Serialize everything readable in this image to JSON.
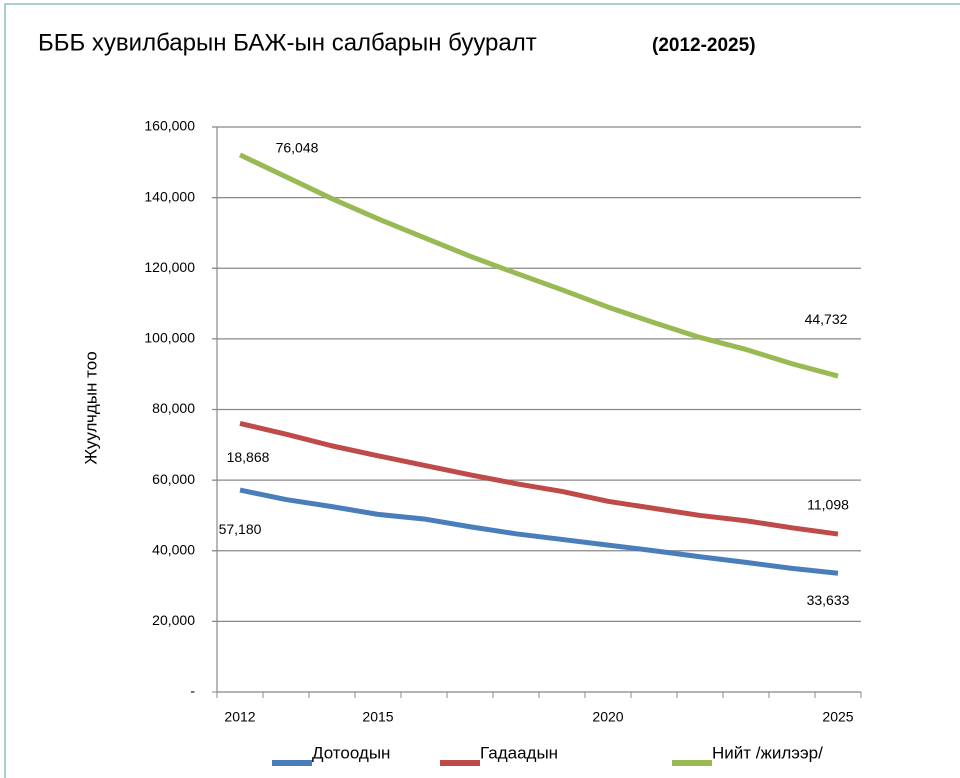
{
  "chart_data": {
    "type": "line",
    "stacked": true,
    "title": "БББ хувилбарын БАЖ-ын салбарын бууралт",
    "subtitle": "(2012-2025)",
    "y_label": "Жуулчдын тоо",
    "categories": [
      "2012",
      null,
      null,
      "2015",
      null,
      null,
      null,
      null,
      "2020",
      null,
      null,
      null,
      null,
      "2025"
    ],
    "series": [
      {
        "name": "Дотоодын",
        "color": "#4a7ebb",
        "values": [
          57180,
          54500,
          52500,
          50300,
          49000,
          46800,
          44800,
          43200,
          41600,
          40000,
          38300,
          36700,
          35000,
          33633
        ],
        "value_labels": [
          "57,180",
          null,
          null,
          null,
          null,
          null,
          null,
          null,
          null,
          null,
          null,
          null,
          null,
          "33,633"
        ]
      },
      {
        "name": "Гадаадын",
        "color": "#be4b48",
        "values": [
          18868,
          18500,
          17200,
          16600,
          15200,
          14700,
          14200,
          13600,
          12400,
          12000,
          11700,
          11800,
          11500,
          11098
        ],
        "value_labels": [
          "18,868",
          null,
          null,
          null,
          null,
          null,
          null,
          null,
          null,
          null,
          null,
          null,
          null,
          "11,098"
        ]
      },
      {
        "name": "Нийт /жилээр/",
        "color": "#98b954",
        "values": [
          76048,
          72900,
          70000,
          67100,
          64500,
          61900,
          59600,
          57100,
          55000,
          52600,
          50400,
          48500,
          46450,
          44732
        ],
        "value_labels": [
          "76,048",
          null,
          null,
          null,
          null,
          null,
          null,
          null,
          null,
          null,
          null,
          null,
          null,
          "44,732"
        ]
      }
    ],
    "ylim": [
      0,
      160000
    ],
    "yticks": [
      {
        "value": 0,
        "label": "-"
      },
      {
        "value": 20000,
        "label": "20,000"
      },
      {
        "value": 40000,
        "label": "40,000"
      },
      {
        "value": 60000,
        "label": "60,000"
      },
      {
        "value": 80000,
        "label": "80,000"
      },
      {
        "value": 100000,
        "label": "100,000"
      },
      {
        "value": 120000,
        "label": "120,000"
      },
      {
        "value": 140000,
        "label": "140,000"
      },
      {
        "value": 160000,
        "label": "160,000"
      }
    ],
    "grid": true
  }
}
